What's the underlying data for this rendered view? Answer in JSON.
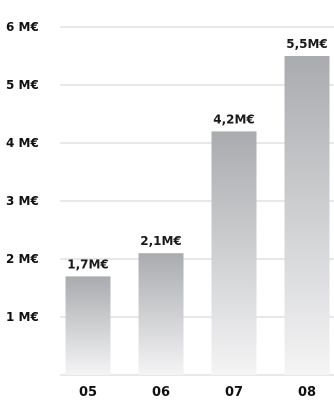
{
  "chart_data": {
    "type": "bar",
    "categories": [
      "05",
      "06",
      "07",
      "08"
    ],
    "values": [
      1.7,
      2.1,
      4.2,
      5.5
    ],
    "value_labels": [
      "1,7M€",
      "2,1M€",
      "4,2M€",
      "5,5M€"
    ],
    "ylim": [
      0,
      6
    ],
    "yticks": [
      1,
      2,
      3,
      4,
      5,
      6
    ],
    "ytick_labels": [
      "1 M€",
      "2 M€",
      "3 M€",
      "4 M€",
      "5 M€",
      "6 M€"
    ],
    "grid": true,
    "colors": {
      "bar_top": "#a9abae",
      "bar_bottom": "#f4f4f5",
      "grid": "#d0d0d0",
      "text": "#111111"
    }
  }
}
